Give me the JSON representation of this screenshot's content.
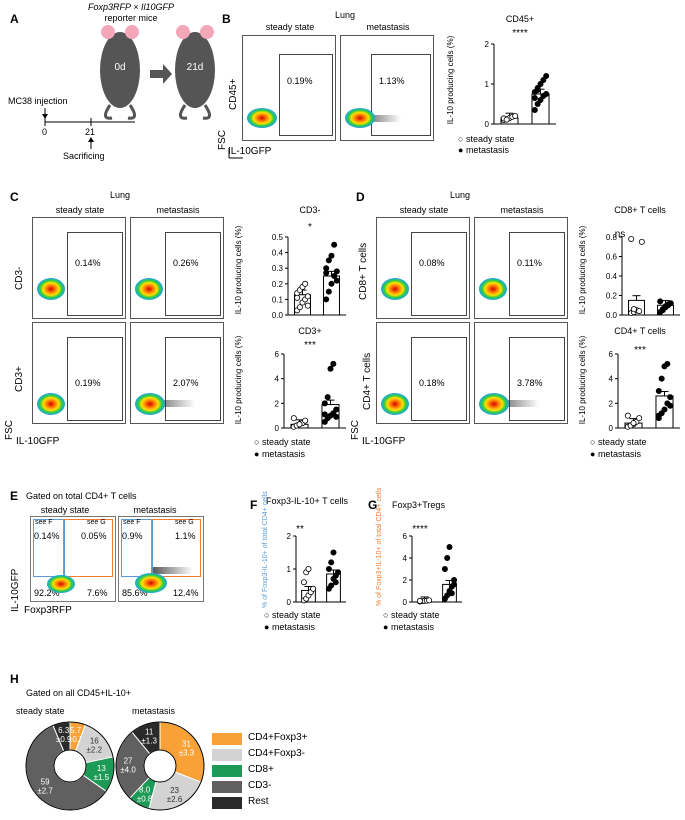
{
  "panels": {
    "A": "A",
    "B": "B",
    "C": "C",
    "D": "D",
    "E": "E",
    "F": "F",
    "G": "G",
    "H": "H"
  },
  "A": {
    "mouse_title_1": "Foxp3RFP × Il10GFP",
    "mouse_title_2": "reporter mice",
    "day0": "0d",
    "day21": "21d",
    "injection": "MC38 injection",
    "t0": "0",
    "t21": "21",
    "sacrifice": "Sacrificing"
  },
  "B": {
    "organ": "Lung",
    "col1": "steady state",
    "col2": "metastasis",
    "yaxis1": "CD45+",
    "yaxis2": "FSC",
    "xaxis": "IL-10GFP",
    "pct1": "0.19%",
    "pct2": "1.13%",
    "chart_title": "CD45+",
    "ylabel": "IL-10 producing cells (%)",
    "sig": "****",
    "legend1": "steady state",
    "legend2": "metastasis"
  },
  "C": {
    "organ": "Lung",
    "col1": "steady state",
    "col2": "metastasis",
    "row1": "CD3-",
    "row2": "CD3+",
    "fsc": "FSC",
    "xaxis": "IL-10GFP",
    "pct": [
      "0.14%",
      "0.26%",
      "0.19%",
      "2.07%"
    ],
    "top_title": "CD3-",
    "top_sig": "*",
    "bottom_title": "CD3+",
    "bottom_sig": "***",
    "ylabel_top": "IL-10 producing cells (%)",
    "ylabel_bottom": "IL-10 producing cells (%)",
    "legend1": "steady state",
    "legend2": "metastasis"
  },
  "D": {
    "organ": "Lung",
    "col1": "steady state",
    "col2": "metastasis",
    "row1": "CD8+ T cells",
    "row2": "CD4+ T cells",
    "fsc": "FSC",
    "xaxis": "IL-10GFP",
    "pct": [
      "0.08%",
      "0.11%",
      "0.18%",
      "3.78%"
    ],
    "top_title": "CD8+ T cells",
    "top_sig": "ns",
    "bottom_title": "CD4+ T cells",
    "bottom_sig": "***",
    "ylabel_top": "IL-10 producing cells (%)",
    "ylabel_bottom": "IL-10 producing cells (%)",
    "legend1": "steady state",
    "legend2": "metastasis"
  },
  "E": {
    "title": "Gated on total CD4+ T cells",
    "col1": "steady state",
    "col2": "metastasis",
    "seeF": "see F",
    "seeG": "see G",
    "q_ss": [
      "0.14%",
      "0.05%",
      "92.2%",
      "7.6%"
    ],
    "q_met": [
      "0.9%",
      "1.1%",
      "85.6%",
      "12.4%"
    ],
    "yaxis": "IL-10GFP",
    "xaxis": "Foxp3RFP"
  },
  "F": {
    "title": "Foxp3-IL-10+ T cells",
    "ylabel": "% of Foxp3-IL-10+ of total CD4+ cells",
    "sig": "**",
    "legend1": "steady state",
    "legend2": "metastasis"
  },
  "G": {
    "title": "Foxp3+Tregs",
    "ylabel": "% of Foxp3+IL-10+ of total CD4+ cells",
    "sig": "****",
    "legend1": "steady state",
    "legend2": "metastasis"
  },
  "H": {
    "title": "Gated on all CD45+IL-10+",
    "col1": "steady state",
    "col2": "metastasis",
    "legend": [
      {
        "label": "CD4+Foxp3+",
        "color": "#f7a136"
      },
      {
        "label": "CD4+Foxp3-",
        "color": "#d3d3d3"
      },
      {
        "label": "CD8+",
        "color": "#1e9a57"
      },
      {
        "label": "CD3-",
        "color": "#606060"
      },
      {
        "label": "Rest",
        "color": "#2a2a2a"
      }
    ]
  },
  "chart_data": [
    {
      "type": "bar",
      "title": "CD45+",
      "categories": [
        "steady state",
        "metastasis"
      ],
      "values": [
        0.15,
        0.75
      ],
      "ylim": [
        0,
        2
      ],
      "yticks": [
        "0",
        "1",
        "2"
      ],
      "ylabel": "IL-10 producing cells (%)",
      "points": {
        "steady state": [
          0.1,
          0.12,
          0.15,
          0.18,
          0.2,
          0.14,
          0.11
        ],
        "metastasis": [
          0.35,
          0.5,
          0.6,
          0.7,
          0.75,
          0.8,
          0.9,
          1.0,
          1.1,
          1.2,
          0.65,
          0.85
        ]
      }
    },
    {
      "type": "bar",
      "title": "CD3-",
      "categories": [
        "steady state",
        "metastasis"
      ],
      "values": [
        0.13,
        0.25
      ],
      "ylim": [
        0,
        0.5
      ],
      "yticks": [
        "0.0",
        "0.1",
        "0.2",
        "0.3",
        "0.4",
        "0.5"
      ],
      "ylabel": "IL-10 producing cells (%)",
      "points": {
        "steady state": [
          0.03,
          0.05,
          0.08,
          0.1,
          0.12,
          0.14,
          0.16,
          0.18,
          0.2,
          0.06,
          0.11
        ],
        "metastasis": [
          0.1,
          0.15,
          0.2,
          0.25,
          0.28,
          0.3,
          0.35,
          0.38,
          0.45,
          0.22,
          0.27
        ]
      }
    },
    {
      "type": "bar",
      "title": "CD3+",
      "categories": [
        "steady state",
        "metastasis"
      ],
      "values": [
        0.3,
        1.9
      ],
      "ylim": [
        0,
        6
      ],
      "yticks": [
        "0",
        "2",
        "4",
        "6"
      ],
      "ylabel": "IL-10 producing cells (%)",
      "points": {
        "steady state": [
          0.1,
          0.2,
          0.3,
          0.4,
          0.6,
          0.8,
          0.2,
          0.3
        ],
        "metastasis": [
          0.5,
          0.8,
          1.0,
          1.2,
          1.5,
          2.0,
          2.5,
          4.8,
          5.2,
          0.9,
          1.1
        ]
      }
    },
    {
      "type": "bar",
      "title": "CD8+ T cells",
      "categories": [
        "steady state",
        "metastasis"
      ],
      "values": [
        0.15,
        0.1
      ],
      "ylim": [
        0,
        0.8
      ],
      "yticks": [
        "0.0",
        "0.2",
        "0.4",
        "0.6",
        "0.8"
      ],
      "ylabel": "IL-10 producing cells (%)",
      "points": {
        "steady state": [
          0.02,
          0.03,
          0.05,
          0.04,
          0.75,
          0.78,
          0.06
        ],
        "metastasis": [
          0.03,
          0.05,
          0.08,
          0.1,
          0.12,
          0.14,
          0.06,
          0.09,
          0.11
        ]
      }
    },
    {
      "type": "bar",
      "title": "CD4+ T cells",
      "categories": [
        "steady state",
        "metastasis"
      ],
      "values": [
        0.4,
        2.6
      ],
      "ylim": [
        0,
        6
      ],
      "yticks": [
        "0",
        "2",
        "4",
        "6"
      ],
      "ylabel": "IL-10 producing cells (%)",
      "points": {
        "steady state": [
          0.1,
          0.2,
          0.3,
          0.5,
          0.8,
          1.0,
          0.2,
          0.4
        ],
        "metastasis": [
          0.8,
          1.2,
          1.5,
          2.0,
          2.5,
          3.0,
          4.0,
          5.0,
          5.2,
          1.8,
          1.0
        ]
      }
    },
    {
      "type": "bar",
      "title": "Foxp3-IL-10+ T cells",
      "categories": [
        "steady state",
        "metastasis"
      ],
      "values": [
        0.35,
        0.85
      ],
      "ylim": [
        0,
        2
      ],
      "yticks": [
        "0",
        "1",
        "2"
      ],
      "points": {
        "steady state": [
          0.05,
          0.1,
          0.2,
          0.3,
          0.4,
          0.6,
          0.9,
          1.0
        ],
        "metastasis": [
          0.4,
          0.5,
          0.7,
          0.8,
          0.9,
          1.0,
          1.2,
          1.5,
          0.6
        ]
      }
    },
    {
      "type": "bar",
      "title": "Foxp3+Tregs",
      "categories": [
        "steady state",
        "metastasis"
      ],
      "values": [
        0.1,
        1.6
      ],
      "ylim": [
        0,
        6
      ],
      "yticks": [
        "0",
        "2",
        "4",
        "6"
      ],
      "points": {
        "steady state": [
          0.05,
          0.08,
          0.1,
          0.12,
          0.15,
          0.1
        ],
        "metastasis": [
          0.3,
          0.6,
          1.0,
          1.4,
          2.0,
          3.0,
          4.0,
          5.0,
          0.8,
          1.6
        ]
      }
    },
    {
      "type": "pie",
      "title": "steady state",
      "categories": [
        "CD4+Foxp3+",
        "CD4+Foxp3-",
        "CD8+",
        "CD3-",
        "Rest"
      ],
      "values": [
        5.7,
        16,
        13,
        59,
        6.3
      ],
      "labels": [
        "5.7\n±0.7",
        "16\n±2.2",
        "13\n±1.5",
        "59\n±2.7",
        "6.3\n±0.9"
      ]
    },
    {
      "type": "pie",
      "title": "metastasis",
      "categories": [
        "CD4+Foxp3+",
        "CD4+Foxp3-",
        "CD8+",
        "CD3-",
        "Rest"
      ],
      "values": [
        31,
        23,
        8.0,
        27,
        11
      ],
      "labels": [
        "31\n±3.3",
        "23\n±2.6",
        "8.0\n±0.8",
        "27\n±4.0",
        "11\n±1.3"
      ]
    }
  ]
}
